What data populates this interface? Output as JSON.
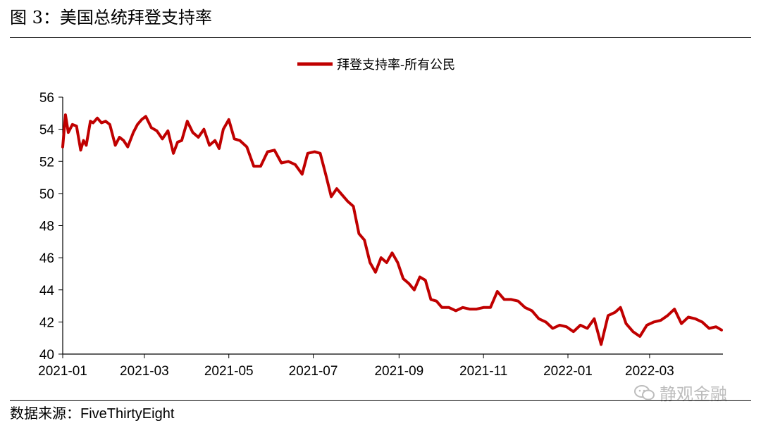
{
  "page": {
    "title": "图 3：美国总统拜登支持率",
    "source_label": "数据来源：",
    "source_value": "FiveThirtyEight",
    "watermark": "静观金融"
  },
  "colors": {
    "series": "#c00000",
    "axis": "#000000",
    "text": "#000000",
    "watermark": "#bdbdbd"
  },
  "icons": {
    "watermark_icon": "wechat-icon"
  },
  "chart_data": {
    "type": "line",
    "title": "",
    "xlabel": "",
    "ylabel": "",
    "ylim": [
      40,
      56
    ],
    "yticks": [
      40,
      42,
      44,
      46,
      48,
      50,
      52,
      54,
      56
    ],
    "xlim": [
      "2021-01-01",
      "2022-04-23"
    ],
    "xticks": [
      "2021-01",
      "2021-03",
      "2021-05",
      "2021-07",
      "2021-09",
      "2021-11",
      "2022-01",
      "2022-03"
    ],
    "grid": false,
    "legend": "top-center",
    "series": [
      {
        "name": "拜登支持率-所有公民",
        "x": [
          "2021-01-01",
          "2021-01-03",
          "2021-01-05",
          "2021-01-08",
          "2021-01-11",
          "2021-01-14",
          "2021-01-16",
          "2021-01-18",
          "2021-01-21",
          "2021-01-23",
          "2021-01-26",
          "2021-01-29",
          "2021-02-01",
          "2021-02-04",
          "2021-02-08",
          "2021-02-11",
          "2021-02-14",
          "2021-02-17",
          "2021-02-21",
          "2021-02-24",
          "2021-02-27",
          "2021-03-02",
          "2021-03-06",
          "2021-03-10",
          "2021-03-14",
          "2021-03-18",
          "2021-03-22",
          "2021-03-25",
          "2021-03-28",
          "2021-04-01",
          "2021-04-05",
          "2021-04-09",
          "2021-04-13",
          "2021-04-17",
          "2021-04-21",
          "2021-04-24",
          "2021-04-27",
          "2021-05-01",
          "2021-05-05",
          "2021-05-09",
          "2021-05-14",
          "2021-05-19",
          "2021-05-24",
          "2021-05-29",
          "2021-06-03",
          "2021-06-08",
          "2021-06-13",
          "2021-06-18",
          "2021-06-23",
          "2021-06-27",
          "2021-07-02",
          "2021-07-06",
          "2021-07-10",
          "2021-07-14",
          "2021-07-18",
          "2021-07-22",
          "2021-07-26",
          "2021-07-30",
          "2021-08-03",
          "2021-08-07",
          "2021-08-11",
          "2021-08-15",
          "2021-08-19",
          "2021-08-23",
          "2021-08-27",
          "2021-08-31",
          "2021-09-04",
          "2021-09-08",
          "2021-09-12",
          "2021-09-16",
          "2021-09-20",
          "2021-09-24",
          "2021-09-28",
          "2021-10-02",
          "2021-10-07",
          "2021-10-12",
          "2021-10-17",
          "2021-10-22",
          "2021-10-27",
          "2021-11-01",
          "2021-11-06",
          "2021-11-11",
          "2021-11-16",
          "2021-11-21",
          "2021-11-26",
          "2021-12-01",
          "2021-12-06",
          "2021-12-11",
          "2021-12-16",
          "2021-12-21",
          "2021-12-26",
          "2021-12-31",
          "2022-01-05",
          "2022-01-10",
          "2022-01-15",
          "2022-01-20",
          "2022-01-25",
          "2022-01-30",
          "2022-02-04",
          "2022-02-08",
          "2022-02-12",
          "2022-02-17",
          "2022-02-22",
          "2022-02-27",
          "2022-03-04",
          "2022-03-09",
          "2022-03-14",
          "2022-03-19",
          "2022-03-24",
          "2022-03-29",
          "2022-04-03",
          "2022-04-08",
          "2022-04-13",
          "2022-04-18",
          "2022-04-22"
        ],
        "y": [
          52.9,
          54.9,
          53.8,
          54.3,
          54.2,
          52.7,
          53.3,
          53.0,
          54.5,
          54.4,
          54.7,
          54.4,
          54.5,
          54.3,
          53.0,
          53.5,
          53.3,
          52.9,
          53.8,
          54.3,
          54.6,
          54.8,
          54.1,
          53.9,
          53.4,
          53.9,
          52.5,
          53.2,
          53.3,
          54.5,
          53.8,
          53.5,
          54.0,
          53.0,
          53.3,
          52.8,
          54.0,
          54.6,
          53.4,
          53.3,
          52.9,
          51.7,
          51.7,
          52.6,
          52.7,
          51.9,
          52.0,
          51.8,
          51.2,
          52.5,
          52.6,
          52.5,
          51.2,
          49.8,
          50.3,
          49.9,
          49.5,
          49.2,
          47.5,
          47.1,
          45.7,
          45.1,
          46.0,
          45.7,
          46.3,
          45.7,
          44.7,
          44.4,
          44.0,
          44.8,
          44.6,
          43.4,
          43.3,
          42.9,
          42.9,
          42.7,
          42.9,
          42.8,
          42.8,
          42.9,
          42.9,
          43.9,
          43.4,
          43.4,
          43.3,
          42.9,
          42.7,
          42.2,
          42.0,
          41.6,
          41.8,
          41.7,
          41.4,
          41.8,
          41.6,
          42.2,
          40.6,
          42.4,
          42.6,
          42.9,
          41.9,
          41.4,
          41.1,
          41.8,
          42.0,
          42.1,
          42.4,
          42.8,
          41.9,
          42.3,
          42.2,
          42.0,
          41.6,
          41.7,
          41.5
        ]
      }
    ]
  }
}
